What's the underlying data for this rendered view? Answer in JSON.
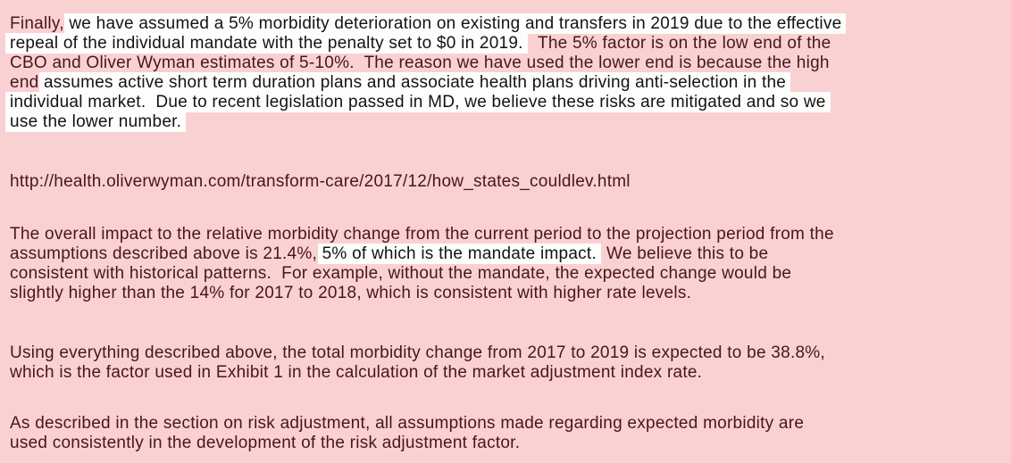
{
  "page": {
    "tint_background_color": "#f9d1d3",
    "tinted_text_color": "#4a151a",
    "highlight_background_color": "#fdfdfc",
    "highlighted_text_color": "#131313"
  },
  "document": {
    "paragraphs": [
      {
        "name": "mandate-morbidity-paragraph",
        "lines": [
          {
            "segments": [
              {
                "text": "Finally, ",
                "highlighted": false
              },
              {
                "text": "we have assumed a 5% morbidity deterioration on existing and transfers in 2019 due to the effective",
                "highlighted": true
              }
            ]
          },
          {
            "segments": [
              {
                "text": "repeal of the individual mandate with the penalty set to $0 in 2019.",
                "highlighted": true
              },
              {
                "text": "   The 5% factor is on the low end of the",
                "highlighted": false
              }
            ]
          },
          {
            "segments": [
              {
                "text": "CBO and Oliver Wyman estimates of 5-10%.  The reason we have used the lower end is because the high",
                "highlighted": false
              }
            ]
          },
          {
            "segments": [
              {
                "text": "end ",
                "highlighted": false
              },
              {
                "text": "assumes active short term duration plans and associate health plans driving anti-selection in the",
                "highlighted": true
              }
            ]
          },
          {
            "segments": [
              {
                "text": "individual market.  Due to recent legislation passed in MD, we believe these risks are mitigated and so we",
                "highlighted": true
              }
            ]
          },
          {
            "segments": [
              {
                "text": "use the lower number.",
                "highlighted": true
              }
            ]
          }
        ]
      },
      {
        "name": "source-url-paragraph",
        "lines": [
          {
            "segments": [
              {
                "text": "http://health.oliverwyman.com/transform-care/2017/12/how_states_couldlev.html",
                "highlighted": false
              }
            ]
          }
        ]
      },
      {
        "name": "overall-impact-paragraph",
        "lines": [
          {
            "segments": [
              {
                "text": "The overall impact to the relative morbidity change from the current period to the projection period from the",
                "highlighted": false
              }
            ]
          },
          {
            "segments": [
              {
                "text": "assumptions described above is 21.4%, ",
                "highlighted": false
              },
              {
                "text": "5% of which is the mandate impact.",
                "highlighted": true
              },
              {
                "text": "  We believe this to be",
                "highlighted": false
              }
            ]
          },
          {
            "segments": [
              {
                "text": "consistent with historical patterns.  For example, without the mandate, the expected change would be",
                "highlighted": false
              }
            ]
          },
          {
            "segments": [
              {
                "text": "slightly higher than the 14% for 2017 to 2018, which is consistent with higher rate levels.",
                "highlighted": false
              }
            ]
          }
        ]
      },
      {
        "name": "total-morbidity-change-paragraph",
        "lines": [
          {
            "segments": [
              {
                "text": "Using everything described above, the total morbidity change from 2017 to 2019 is expected to be 38.8%,",
                "highlighted": false
              }
            ]
          },
          {
            "segments": [
              {
                "text": "which is the factor used in Exhibit 1 in the calculation of the market adjustment index rate.",
                "highlighted": false
              }
            ]
          }
        ]
      },
      {
        "name": "risk-adjustment-paragraph",
        "lines": [
          {
            "segments": [
              {
                "text": "As described in the section on risk adjustment, all assumptions made regarding expected morbidity are",
                "highlighted": false
              }
            ]
          },
          {
            "segments": [
              {
                "text": "used consistently in the development of the risk adjustment factor.",
                "highlighted": false
              }
            ]
          }
        ]
      }
    ]
  }
}
